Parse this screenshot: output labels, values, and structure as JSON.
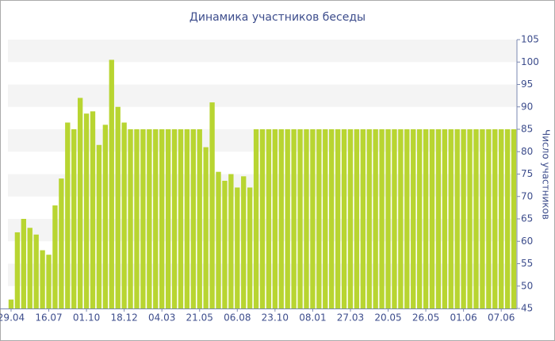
{
  "chart_data": {
    "type": "bar",
    "title": "Динамика участников беседы",
    "y_label": "Число участников",
    "categories": [
      "29.04",
      null,
      null,
      null,
      null,
      null,
      "16.07",
      null,
      null,
      null,
      null,
      null,
      "01.10",
      null,
      null,
      null,
      null,
      null,
      "18.12",
      null,
      null,
      null,
      null,
      null,
      "04.03",
      null,
      null,
      null,
      null,
      null,
      "21.05",
      null,
      null,
      null,
      null,
      null,
      "06.08",
      null,
      null,
      null,
      null,
      null,
      "23.10",
      null,
      null,
      null,
      null,
      null,
      "08.01",
      null,
      null,
      null,
      null,
      null,
      "27.03",
      null,
      null,
      null,
      null,
      null,
      "20.05",
      null,
      null,
      null,
      null,
      null,
      "26.05",
      null,
      null,
      null,
      null,
      null,
      "01.06",
      null,
      null,
      null,
      null,
      null,
      "07.06",
      null,
      null
    ],
    "values": [
      47,
      62,
      65,
      63,
      61.5,
      58,
      57,
      68,
      74,
      86.5,
      85,
      92,
      88.5,
      89,
      81.5,
      86,
      100.5,
      90,
      86.5,
      85,
      85,
      85,
      85,
      85,
      85,
      85,
      85,
      85,
      85,
      85,
      85,
      81,
      91,
      75.5,
      73.5,
      75,
      72,
      74.5,
      72,
      85,
      85,
      85,
      85,
      85,
      85,
      85,
      85,
      85,
      85,
      85,
      85,
      85,
      85,
      85,
      85,
      85,
      85,
      85,
      85,
      85,
      85,
      85,
      85,
      85,
      85,
      85,
      85,
      85,
      85,
      85,
      85,
      85,
      85,
      85,
      85,
      85,
      85,
      85,
      85,
      85,
      85
    ],
    "color": "#b8d531",
    "ylim": [
      45,
      105
    ],
    "yticks": [
      45,
      50,
      55,
      60,
      65,
      70,
      75,
      80,
      85,
      90,
      95,
      100,
      105
    ],
    "grid": true
  }
}
